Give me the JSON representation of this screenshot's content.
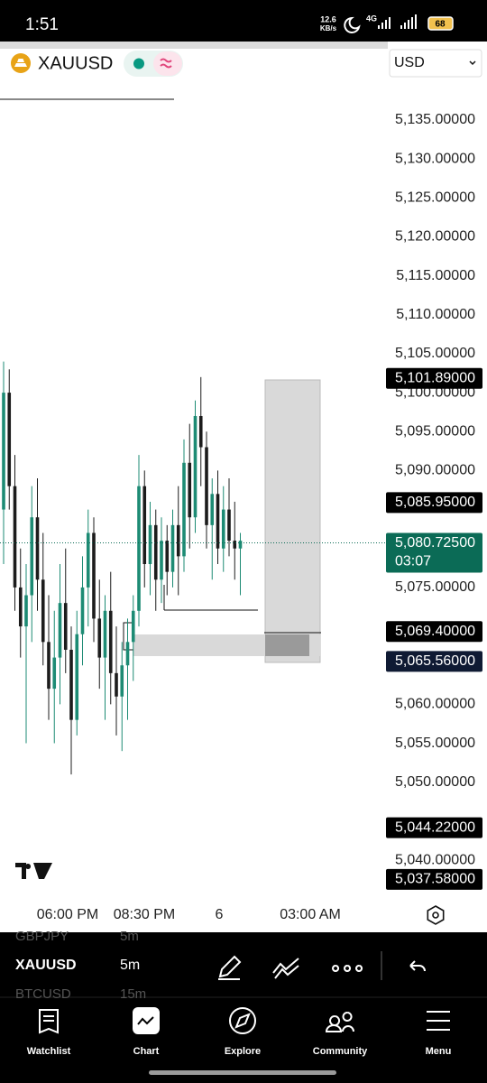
{
  "status_bar": {
    "time": "1:51",
    "speed": "12.6",
    "speed_unit": "KB/s",
    "network": "4G",
    "battery": "68"
  },
  "header": {
    "symbol": "XAUUSD",
    "currency": "USD"
  },
  "chart_data": {
    "type": "candlestick",
    "up_color": "#1d8b74",
    "down_color": "#1c1c1c",
    "ylim": [
      5035,
      5140
    ],
    "yticks": [
      {
        "value": 5135,
        "label": "5,135.00000"
      },
      {
        "value": 5130,
        "label": "5,130.00000"
      },
      {
        "value": 5125,
        "label": "5,125.00000"
      },
      {
        "value": 5120,
        "label": "5,120.00000"
      },
      {
        "value": 5115,
        "label": "5,115.00000"
      },
      {
        "value": 5110,
        "label": "5,110.00000"
      },
      {
        "value": 5105,
        "label": "5,105.00000"
      },
      {
        "value": 5100,
        "label": "5,100.00000"
      },
      {
        "value": 5095,
        "label": "5,095.00000"
      },
      {
        "value": 5090,
        "label": "5,090.00000"
      },
      {
        "value": 5075,
        "label": "5,075.00000"
      },
      {
        "value": 5060,
        "label": "5,060.00000"
      },
      {
        "value": 5055,
        "label": "5,055.00000"
      },
      {
        "value": 5050,
        "label": "5,050.00000"
      },
      {
        "value": 5040,
        "label": "5,040.00000"
      }
    ],
    "open": [
      5085,
      5100,
      5088,
      5075,
      5070,
      5074,
      5084,
      5076,
      5068,
      5062,
      5066,
      5073,
      5067,
      5058,
      5069,
      5075,
      5082,
      5071,
      5066,
      5072,
      5064,
      5061,
      5065,
      5068,
      5072,
      5088,
      5078,
      5083,
      5076,
      5081,
      5077,
      5083,
      5079,
      5091,
      5084,
      5097,
      5093,
      5083,
      5087,
      5080,
      5085,
      5081,
      5080
    ],
    "high": [
      5104,
      5103,
      5092,
      5080,
      5078,
      5088,
      5089,
      5082,
      5074,
      5072,
      5078,
      5080,
      5070,
      5072,
      5079,
      5085,
      5084,
      5076,
      5074,
      5077,
      5070,
      5068,
      5071,
      5074,
      5092,
      5090,
      5086,
      5085,
      5084,
      5083,
      5085,
      5088,
      5094,
      5096,
      5099,
      5102,
      5095,
      5089,
      5090,
      5088,
      5089,
      5086,
      5082
    ],
    "low": [
      5078,
      5085,
      5072,
      5066,
      5055,
      5068,
      5072,
      5065,
      5058,
      5055,
      5060,
      5064,
      5051,
      5056,
      5065,
      5070,
      5068,
      5062,
      5058,
      5060,
      5056,
      5054,
      5058,
      5063,
      5070,
      5075,
      5074,
      5072,
      5073,
      5074,
      5075,
      5074,
      5077,
      5080,
      5082,
      5088,
      5080,
      5076,
      5078,
      5077,
      5079,
      5076,
      5074
    ],
    "close": [
      5100,
      5088,
      5075,
      5070,
      5074,
      5084,
      5076,
      5068,
      5062,
      5066,
      5073,
      5067,
      5058,
      5069,
      5075,
      5082,
      5071,
      5066,
      5072,
      5064,
      5061,
      5065,
      5068,
      5072,
      5088,
      5078,
      5083,
      5076,
      5081,
      5077,
      5083,
      5079,
      5091,
      5084,
      5097,
      5093,
      5083,
      5087,
      5080,
      5085,
      5081,
      5080,
      5081
    ],
    "price_tags": [
      {
        "value": 5101.89,
        "label": "5,101.89000",
        "color": "#000000"
      },
      {
        "value": 5085.95,
        "label": "5,085.95000",
        "color": "#000000"
      },
      {
        "value": 5080.725,
        "label": "5,080.72500",
        "sub": "03:07",
        "color": "#0b6b56"
      },
      {
        "value": 5069.4,
        "label": "5,069.40000",
        "color": "#000000"
      },
      {
        "value": 5065.56,
        "label": "5,065.56000",
        "color": "#0f1a33"
      },
      {
        "value": 5044.22,
        "label": "5,044.22000",
        "color": "#000000"
      },
      {
        "value": 5037.58,
        "label": "5,037.58000",
        "color": "#000000"
      }
    ],
    "x_labels": [
      "06:00 PM",
      "08:30 PM",
      "6",
      "03:00 AM"
    ]
  },
  "toolbar": {
    "prev_symbol": "GBPJPY",
    "prev_interval": "5m",
    "symbol": "XAUUSD",
    "interval": "5m",
    "next_symbol": "BTCUSD",
    "next_interval": "15m"
  },
  "nav": [
    "Watchlist",
    "Chart",
    "Explore",
    "Community",
    "Menu"
  ]
}
